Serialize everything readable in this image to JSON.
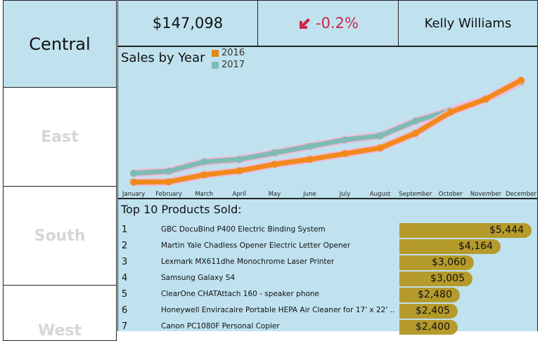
{
  "regions": [
    {
      "label": "Central",
      "active": true
    },
    {
      "label": "East",
      "active": false
    },
    {
      "label": "South",
      "active": false
    },
    {
      "label": "West",
      "active": false
    }
  ],
  "kpis": {
    "total": "$147,098",
    "change": "-0.2%",
    "manager": "Kelly Williams"
  },
  "colors": {
    "panel_bg": "#c0e2ef",
    "series_2016": "#f08a1c",
    "series_2017": "#7ebcb3",
    "bar": "#b59a2c",
    "negative": "#c9274c"
  },
  "chart_data": {
    "type": "line",
    "title": "Sales by Year",
    "categories": [
      "January",
      "February",
      "March",
      "April",
      "May",
      "June",
      "July",
      "August",
      "September",
      "October",
      "November",
      "December"
    ],
    "series": [
      {
        "name": "2016",
        "values": [
          2,
          2.5,
          11,
          16,
          24,
          30,
          37,
          44,
          62,
          88,
          104,
          127
        ]
      },
      {
        "name": "2017",
        "values": [
          13,
          15.5,
          27,
          30,
          38,
          46,
          54,
          59,
          77,
          90,
          104,
          125
        ]
      }
    ],
    "ylim": [
      0,
      130
    ],
    "legend": "top-left",
    "grid": false
  },
  "products": {
    "title": "Top 10 Products Sold:",
    "items": [
      {
        "rank": "1",
        "name": "GBC DocuBind P400 Electric Binding System",
        "value": "$5,444",
        "amount": 5444
      },
      {
        "rank": "2",
        "name": "Martin Yale Chadless Opener Electric Letter Opener",
        "value": "$4,164",
        "amount": 4164
      },
      {
        "rank": "3",
        "name": "Lexmark MX611dhe Monochrome Laser Printer",
        "value": "$3,060",
        "amount": 3060
      },
      {
        "rank": "4",
        "name": "Samsung Galaxy S4",
        "value": "$3,005",
        "amount": 3005
      },
      {
        "rank": "5",
        "name": "ClearOne CHATAttach 160 - speaker phone",
        "value": "$2,480",
        "amount": 2480
      },
      {
        "rank": "6",
        "name": "Honeywell Enviracaire Portable HEPA Air Cleaner for 17' x 22' ..",
        "value": "$2,405",
        "amount": 2405
      },
      {
        "rank": "7",
        "name": "Canon PC1080F Personal Copier",
        "value": "$2,400",
        "amount": 2400
      }
    ]
  }
}
